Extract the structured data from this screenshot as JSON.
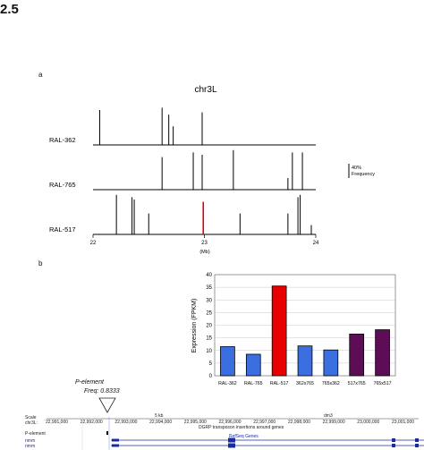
{
  "figure_label": "2.5",
  "panel_a_label": "a",
  "panel_b_label": "b",
  "chart_data": [
    {
      "type": "bar",
      "title": "chr3L",
      "xlabel": "(Mb)",
      "xlim": [
        22,
        24
      ],
      "xticks": [
        "22",
        "23",
        "24"
      ],
      "scale_bar": "40% Frequency",
      "tracks": [
        {
          "name": "RAL-362",
          "positions": [
            22.06,
            22.62,
            22.68,
            22.72,
            22.98
          ],
          "freqs": [
            0.75,
            0.8,
            0.65,
            0.4,
            0.7
          ],
          "colors": [
            "#000",
            "#000",
            "#000",
            "#000",
            "#000"
          ]
        },
        {
          "name": "RAL-765",
          "positions": [
            22.62,
            22.9,
            22.98,
            23.26,
            23.75,
            23.79,
            23.88
          ],
          "freqs": [
            0.7,
            0.8,
            0.75,
            0.85,
            0.25,
            0.8,
            0.8
          ],
          "colors": [
            "#000",
            "#000",
            "#000",
            "#000",
            "#000",
            "#000",
            "#000"
          ]
        },
        {
          "name": "RAL-517",
          "positions": [
            22.21,
            22.35,
            22.37,
            22.5,
            22.99,
            23.32,
            23.75,
            23.84,
            23.86,
            23.96
          ],
          "freqs": [
            0.85,
            0.8,
            0.75,
            0.45,
            0.7,
            0.45,
            0.45,
            0.8,
            0.85,
            0.2
          ],
          "colors": [
            "#000",
            "#000",
            "#000",
            "#000",
            "#e00000",
            "#000",
            "#000",
            "#000",
            "#000",
            "#000"
          ]
        }
      ]
    },
    {
      "type": "bar",
      "categories": [
        "RAL-362",
        "RAL-765",
        "RAL-517",
        "362x765",
        "765x362",
        "517x765",
        "765x517"
      ],
      "values": [
        11.5,
        8.5,
        35.5,
        11.8,
        10.2,
        16.5,
        18.2
      ],
      "colors": [
        "#3b6fe0",
        "#3b6fe0",
        "#e80000",
        "#3b6fe0",
        "#3b6fe0",
        "#5c0d56",
        "#5c0d56"
      ],
      "ylabel": "Expression (FPKM)",
      "ylim": [
        0,
        40
      ],
      "yticks": [
        0,
        5,
        10,
        15,
        20,
        25,
        30,
        35,
        40
      ],
      "grid": true
    }
  ],
  "browser": {
    "p_element_name": "P-element",
    "p_element_freq": "Freq: 0.8333",
    "scale_label": "Scale",
    "chrom_label": "chr3L:",
    "kb_label": "5 kb",
    "assembly": "dm3",
    "coords": [
      "22,991,000",
      "22,992,000",
      "22,993,000",
      "22,994,000",
      "22,995,000",
      "22,996,000",
      "22,997,000",
      "22,998,000",
      "22,999,000",
      "23,000,000",
      "23,001,000"
    ],
    "track_note": "DGRP transposon insertions around genes",
    "p_track_label": "P-element",
    "refseq_label": "RefSeq Genes",
    "gene_rows": [
      "nmm",
      "nmm"
    ]
  }
}
